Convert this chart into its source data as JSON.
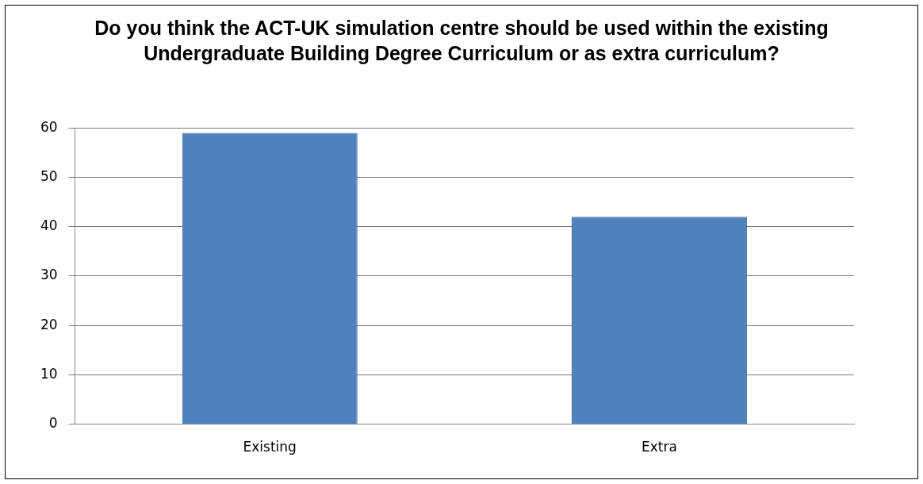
{
  "chart_data": {
    "type": "bar",
    "title": "Do you think the ACT-UK simulation centre should be used within the existing Undergraduate Building Degree Curriculum or as extra curriculum?",
    "categories": [
      "Existing",
      "Extra"
    ],
    "series": [
      {
        "color": "#4f81bd",
        "values": [
          59,
          42
        ]
      }
    ],
    "ylim": [
      0,
      60
    ],
    "yticks": [
      0,
      10,
      20,
      30,
      40,
      50,
      60
    ],
    "grid": "y",
    "legend": false
  }
}
